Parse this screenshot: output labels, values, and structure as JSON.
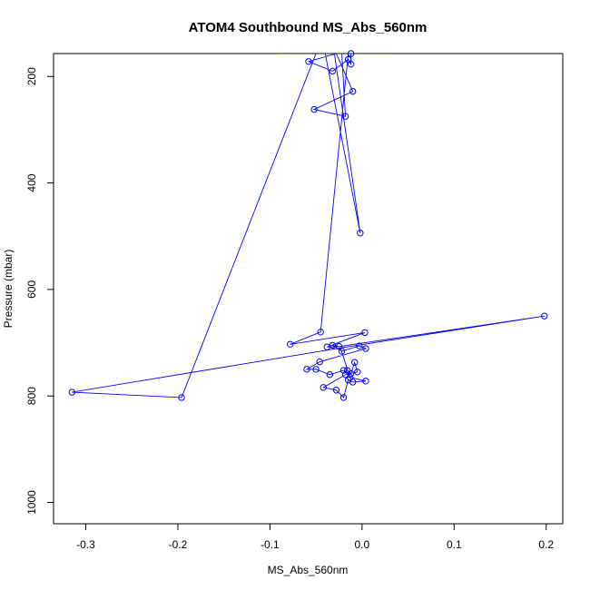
{
  "chart_data": {
    "type": "line",
    "title": "ATOM4 Southbound MS_Abs_560nm",
    "xlabel": "MS_Abs_560nm",
    "ylabel": "Pressure (mbar)",
    "xlim": [
      -0.335,
      0.218
    ],
    "ylim": [
      1040,
      157
    ],
    "y_reversed": true,
    "x_ticks": [
      -0.3,
      -0.2,
      -0.1,
      0.0,
      0.1,
      0.2
    ],
    "x_tick_labels": [
      "-0.3",
      "-0.2",
      "-0.1",
      "0.0",
      "0.1",
      "0.2"
    ],
    "y_ticks": [
      200,
      400,
      600,
      800,
      1000
    ],
    "y_tick_labels": [
      "200",
      "400",
      "600",
      "800",
      "1000"
    ],
    "grid": false,
    "legend": "none",
    "series": [
      {
        "color": "#0000ff",
        "marker": "open-circle",
        "points": [
          [
            -0.012,
            157
          ],
          [
            -0.012,
            177
          ],
          [
            -0.015,
            168
          ],
          [
            -0.032,
            190
          ],
          [
            -0.058,
            172
          ],
          [
            -0.028,
            157
          ],
          [
            -0.01,
            228
          ],
          [
            -0.052,
            262
          ],
          [
            -0.018,
            275
          ],
          [
            -0.022,
            157
          ],
          [
            -0.04,
            157
          ],
          [
            -0.002,
            494
          ],
          [
            -0.03,
            157
          ],
          [
            -0.048,
            157
          ],
          [
            -0.056,
            157
          ],
          [
            -0.008,
            157
          ],
          [
            -0.017,
            157
          ],
          [
            -0.024,
            157
          ],
          [
            -0.036,
            157
          ],
          [
            -0.044,
            157
          ],
          [
            -0.014,
            157
          ],
          [
            -0.02,
            157
          ],
          [
            -0.026,
            157
          ],
          [
            -0.005,
            157
          ],
          [
            -0.001,
            157
          ],
          [
            0.03,
            157
          ],
          [
            -0.088,
            157
          ],
          [
            -0.015,
            157
          ],
          [
            -0.045,
            680
          ],
          [
            -0.078,
            703
          ],
          [
            0.003,
            681
          ],
          [
            -0.038,
            708
          ],
          [
            -0.025,
            707
          ],
          [
            -0.032,
            705
          ],
          [
            -0.022,
            716
          ],
          [
            -0.003,
            706
          ],
          [
            0.004,
            711
          ],
          [
            -0.046,
            736
          ],
          [
            -0.06,
            750
          ],
          [
            -0.05,
            750
          ],
          [
            -0.035,
            760
          ],
          [
            -0.02,
            752
          ],
          [
            -0.016,
            752
          ],
          [
            -0.012,
            758
          ],
          [
            -0.008,
            737
          ],
          [
            -0.005,
            755
          ],
          [
            -0.018,
            760
          ],
          [
            -0.042,
            784
          ],
          [
            -0.028,
            789
          ],
          [
            -0.02,
            803
          ],
          [
            -0.015,
            770
          ],
          [
            -0.01,
            774
          ],
          [
            0.004,
            772
          ],
          [
            -0.013,
            765
          ],
          [
            -0.024,
            707
          ],
          [
            0.198,
            650
          ],
          [
            -0.024,
            710
          ],
          [
            -0.315,
            793
          ],
          [
            -0.196,
            803
          ],
          [
            -0.05,
            157
          ],
          [
            0.012,
            157
          ],
          [
            -0.018,
            157
          ],
          [
            -0.062,
            157
          ],
          [
            -0.09,
            157
          ],
          [
            -0.035,
            157
          ],
          [
            -0.011,
            157
          ],
          [
            -0.014,
            157
          ],
          [
            -0.028,
            157
          ],
          [
            -0.021,
            157
          ],
          [
            -0.019,
            157
          ],
          [
            -0.016,
            157
          ],
          [
            -0.018,
            157
          ],
          [
            -0.023,
            157
          ],
          [
            -0.013,
            157
          ],
          [
            -0.022,
            157
          ],
          [
            -0.02,
            157
          ],
          [
            -0.017,
            157
          ],
          [
            -0.012,
            157
          ],
          [
            -0.024,
            157
          ],
          [
            -0.018,
            157
          ]
        ],
        "shown_markers": [
          [
            -0.012,
            157
          ],
          [
            -0.012,
            177
          ],
          [
            -0.015,
            168
          ],
          [
            -0.032,
            190
          ],
          [
            -0.058,
            172
          ],
          [
            -0.01,
            228
          ],
          [
            -0.052,
            262
          ],
          [
            -0.018,
            275
          ],
          [
            -0.002,
            494
          ],
          [
            -0.045,
            680
          ],
          [
            -0.078,
            703
          ],
          [
            0.003,
            681
          ],
          [
            -0.038,
            708
          ],
          [
            -0.025,
            707
          ],
          [
            -0.032,
            705
          ],
          [
            -0.022,
            716
          ],
          [
            -0.003,
            706
          ],
          [
            0.004,
            711
          ],
          [
            -0.046,
            736
          ],
          [
            -0.06,
            750
          ],
          [
            -0.05,
            750
          ],
          [
            -0.035,
            760
          ],
          [
            -0.02,
            752
          ],
          [
            -0.016,
            752
          ],
          [
            -0.012,
            758
          ],
          [
            -0.008,
            737
          ],
          [
            -0.005,
            755
          ],
          [
            -0.018,
            760
          ],
          [
            -0.042,
            784
          ],
          [
            -0.028,
            789
          ],
          [
            -0.02,
            803
          ],
          [
            -0.015,
            770
          ],
          [
            -0.01,
            774
          ],
          [
            0.004,
            772
          ],
          [
            -0.013,
            765
          ],
          [
            0.198,
            650
          ],
          [
            -0.315,
            793
          ],
          [
            -0.196,
            803
          ]
        ]
      }
    ]
  }
}
